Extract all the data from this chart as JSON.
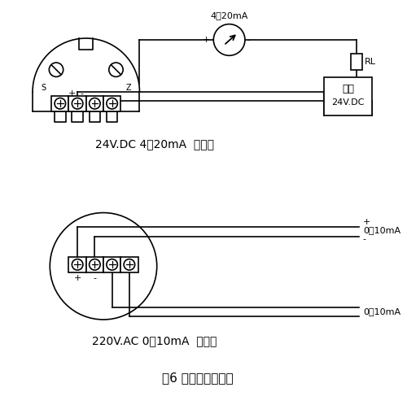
{
  "line_color": "#000000",
  "title": "图6 电远传型接线图",
  "caption1": "24V.DC 4～20mA  两线制",
  "caption2": "220V.AC 0～10mA  四线制",
  "label_4_20mA": "4～20mA",
  "label_0_10mA_1": "0～10mA",
  "label_0_10mA_2": "0～10mA",
  "label_RL": "RL",
  "label_power_line1": "电源",
  "label_power_line2": "24V.DC"
}
